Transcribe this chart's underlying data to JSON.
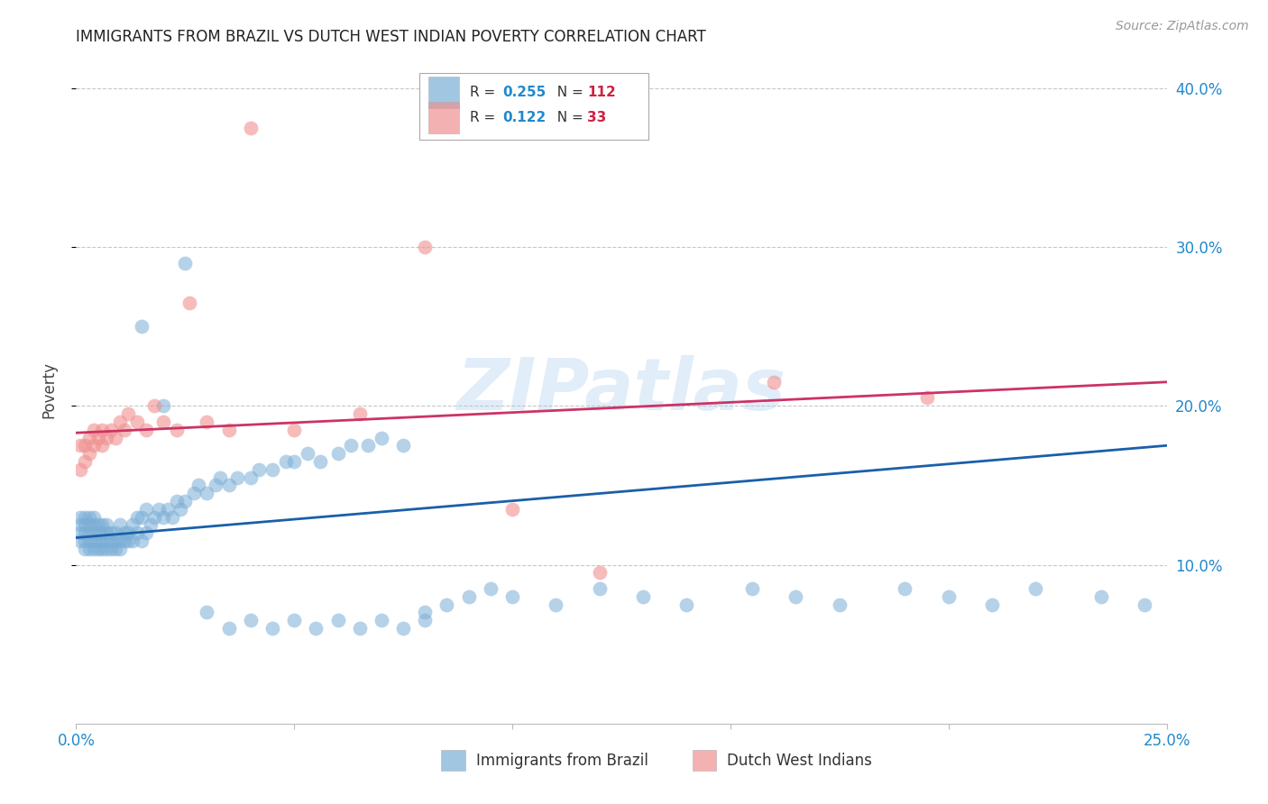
{
  "title": "IMMIGRANTS FROM BRAZIL VS DUTCH WEST INDIAN POVERTY CORRELATION CHART",
  "source": "Source: ZipAtlas.com",
  "ylabel": "Poverty",
  "xlim": [
    0.0,
    0.25
  ],
  "ylim": [
    0.0,
    0.42
  ],
  "background_color": "#ffffff",
  "grid_color": "#c8c8c8",
  "brazil_color": "#7aaed6",
  "dutch_color": "#f09090",
  "brazil_line_color": "#1a5faa",
  "dutch_line_color": "#cc3366",
  "brazil_R": 0.255,
  "brazil_N": 112,
  "dutch_R": 0.122,
  "dutch_N": 33,
  "watermark": "ZIPatlas",
  "legend_label_brazil": "Immigrants from Brazil",
  "legend_label_dutch": "Dutch West Indians",
  "brazil_x": [
    0.001,
    0.001,
    0.001,
    0.001,
    0.002,
    0.002,
    0.002,
    0.002,
    0.002,
    0.003,
    0.003,
    0.003,
    0.003,
    0.003,
    0.004,
    0.004,
    0.004,
    0.004,
    0.004,
    0.005,
    0.005,
    0.005,
    0.005,
    0.006,
    0.006,
    0.006,
    0.006,
    0.007,
    0.007,
    0.007,
    0.007,
    0.008,
    0.008,
    0.008,
    0.009,
    0.009,
    0.009,
    0.01,
    0.01,
    0.01,
    0.011,
    0.011,
    0.012,
    0.012,
    0.013,
    0.013,
    0.014,
    0.014,
    0.015,
    0.015,
    0.016,
    0.016,
    0.017,
    0.018,
    0.019,
    0.02,
    0.021,
    0.022,
    0.023,
    0.024,
    0.025,
    0.027,
    0.028,
    0.03,
    0.032,
    0.033,
    0.035,
    0.037,
    0.04,
    0.042,
    0.045,
    0.048,
    0.05,
    0.053,
    0.056,
    0.06,
    0.063,
    0.067,
    0.07,
    0.075,
    0.08,
    0.085,
    0.09,
    0.095,
    0.1,
    0.11,
    0.12,
    0.13,
    0.14,
    0.155,
    0.165,
    0.175,
    0.19,
    0.2,
    0.21,
    0.22,
    0.235,
    0.245,
    0.015,
    0.02,
    0.025,
    0.03,
    0.035,
    0.04,
    0.045,
    0.05,
    0.055,
    0.06,
    0.065,
    0.07,
    0.075,
    0.08
  ],
  "brazil_y": [
    0.115,
    0.12,
    0.125,
    0.13,
    0.11,
    0.115,
    0.12,
    0.125,
    0.13,
    0.11,
    0.115,
    0.12,
    0.125,
    0.13,
    0.11,
    0.115,
    0.12,
    0.125,
    0.13,
    0.11,
    0.115,
    0.12,
    0.125,
    0.11,
    0.115,
    0.12,
    0.125,
    0.11,
    0.115,
    0.12,
    0.125,
    0.11,
    0.115,
    0.12,
    0.11,
    0.115,
    0.12,
    0.11,
    0.115,
    0.125,
    0.115,
    0.12,
    0.115,
    0.12,
    0.115,
    0.125,
    0.12,
    0.13,
    0.115,
    0.13,
    0.12,
    0.135,
    0.125,
    0.13,
    0.135,
    0.13,
    0.135,
    0.13,
    0.14,
    0.135,
    0.14,
    0.145,
    0.15,
    0.145,
    0.15,
    0.155,
    0.15,
    0.155,
    0.155,
    0.16,
    0.16,
    0.165,
    0.165,
    0.17,
    0.165,
    0.17,
    0.175,
    0.175,
    0.18,
    0.175,
    0.065,
    0.075,
    0.08,
    0.085,
    0.08,
    0.075,
    0.085,
    0.08,
    0.075,
    0.085,
    0.08,
    0.075,
    0.085,
    0.08,
    0.075,
    0.085,
    0.08,
    0.075,
    0.25,
    0.2,
    0.29,
    0.07,
    0.06,
    0.065,
    0.06,
    0.065,
    0.06,
    0.065,
    0.06,
    0.065,
    0.06,
    0.07
  ],
  "dutch_x": [
    0.001,
    0.001,
    0.002,
    0.002,
    0.003,
    0.003,
    0.004,
    0.004,
    0.005,
    0.006,
    0.006,
    0.007,
    0.008,
    0.009,
    0.01,
    0.011,
    0.012,
    0.014,
    0.016,
    0.018,
    0.02,
    0.023,
    0.026,
    0.03,
    0.035,
    0.04,
    0.05,
    0.065,
    0.08,
    0.1,
    0.12,
    0.16,
    0.195
  ],
  "dutch_y": [
    0.16,
    0.175,
    0.165,
    0.175,
    0.17,
    0.18,
    0.175,
    0.185,
    0.18,
    0.175,
    0.185,
    0.18,
    0.185,
    0.18,
    0.19,
    0.185,
    0.195,
    0.19,
    0.185,
    0.2,
    0.19,
    0.185,
    0.265,
    0.19,
    0.185,
    0.375,
    0.185,
    0.195,
    0.3,
    0.135,
    0.095,
    0.215,
    0.205
  ]
}
